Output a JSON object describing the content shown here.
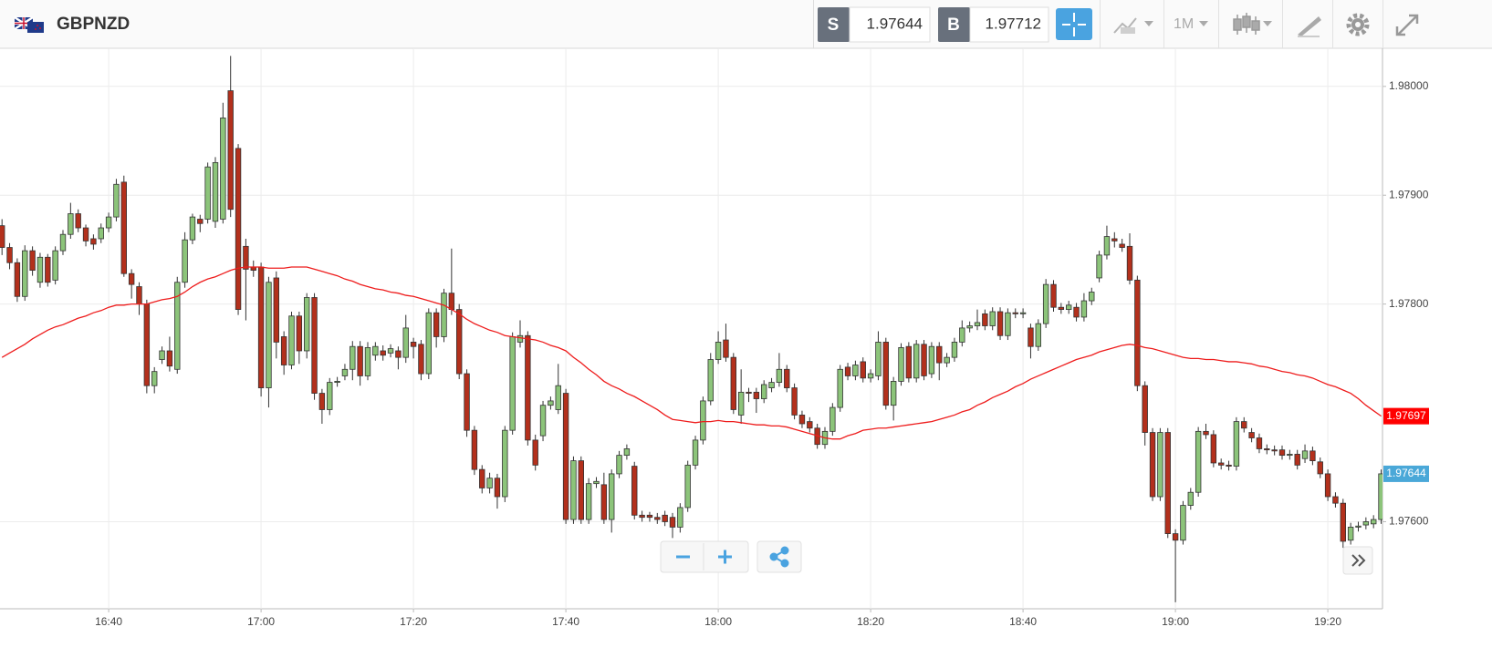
{
  "toolbar": {
    "symbol": "GBPNZD",
    "sell_label": "S",
    "sell_price": "1.97644",
    "buy_label": "B",
    "buy_price": "1.97712",
    "timeframe": "1M"
  },
  "chart_data": {
    "type": "candlestick",
    "up_color": "#8cc47a",
    "down_color": "#b3301c",
    "ylim": [
      1.9752,
      1.98035
    ],
    "yticks": [
      {
        "value": 1.98,
        "label": "1.98000"
      },
      {
        "value": 1.979,
        "label": "1.97900"
      },
      {
        "value": 1.978,
        "label": "1.97800"
      },
      {
        "value": 1.976,
        "label": "1.97600"
      }
    ],
    "grid": true,
    "categories": [
      null,
      null,
      null,
      null,
      null,
      null,
      null,
      null,
      null,
      null,
      null,
      null,
      null,
      null,
      "16:40",
      null,
      null,
      null,
      null,
      null,
      null,
      null,
      null,
      null,
      null,
      null,
      null,
      null,
      null,
      null,
      null,
      null,
      null,
      null,
      "17:00",
      null,
      null,
      null,
      null,
      null,
      null,
      null,
      null,
      null,
      null,
      null,
      null,
      null,
      null,
      null,
      null,
      null,
      null,
      null,
      "17:20",
      null,
      null,
      null,
      null,
      null,
      null,
      null,
      null,
      null,
      null,
      null,
      null,
      null,
      null,
      null,
      null,
      null,
      null,
      null,
      "17:40",
      null,
      null,
      null,
      null,
      null,
      null,
      null,
      null,
      null,
      null,
      null,
      null,
      null,
      null,
      null,
      null,
      null,
      null,
      null,
      "18:00",
      null,
      null,
      null,
      null,
      null,
      null,
      null,
      null,
      null,
      null,
      null,
      null,
      null,
      null,
      null,
      null,
      null,
      null,
      null,
      "18:20",
      null,
      null,
      null,
      null,
      null,
      null,
      null,
      null,
      null,
      null,
      null,
      null,
      null,
      null,
      null,
      null,
      null,
      null,
      null,
      "18:40",
      null,
      null,
      null,
      null,
      null,
      null,
      null,
      null,
      null,
      null,
      null,
      null,
      null,
      null,
      null,
      null,
      null,
      null,
      null,
      "19:00",
      null,
      null,
      null,
      null,
      null,
      null,
      null,
      null,
      null,
      null,
      null,
      null,
      null,
      null,
      null,
      null,
      null,
      null,
      null,
      "19:20",
      null,
      null,
      null,
      null,
      null,
      null,
      null
    ],
    "open": [
      1.97872,
      1.97852,
      1.97838,
      1.97807,
      1.97849,
      1.9782,
      1.97843,
      1.97822,
      1.97849,
      1.97864,
      1.97883,
      1.9787,
      1.9786,
      1.9786,
      1.9787,
      1.9788,
      1.97912,
      1.97828,
      1.97816,
      1.978,
      1.97725,
      1.97749,
      1.97757,
      1.9774,
      1.9782,
      1.97859,
      1.97878,
      1.97878,
      1.97876,
      1.97878,
      1.97996,
      1.97943,
      1.97853,
      1.97834,
      1.97834,
      1.97723,
      1.97824,
      1.9777,
      1.97744,
      1.97789,
      1.97757,
      1.97806,
      1.97718,
      1.97703,
      1.97728,
      1.97734,
      1.9774,
      1.97761,
      1.97734,
      1.97753,
      1.97757,
      1.97755,
      1.97757,
      1.97751,
      1.97765,
      1.97763,
      1.97736,
      1.97792,
      1.9777,
      1.9781,
      1.97795,
      1.97736,
      1.97684,
      1.97648,
      1.97631,
      1.9764,
      1.97623,
      1.97684,
      1.97765,
      1.97771,
      1.97675,
      1.97679,
      1.97707,
      1.97703,
      1.97718,
      1.97602,
      1.97656,
      1.97602,
      1.97635,
      1.97634,
      1.97602,
      1.97644,
      1.97661,
      1.97651,
      1.97606,
      1.97606,
      1.97604,
      1.97606,
      1.97604,
      1.97595,
      1.97613,
      1.97652,
      1.97675,
      1.97711,
      1.97749,
      1.97767,
      1.97751,
      1.97698,
      1.97719,
      1.97719,
      1.97713,
      1.97723,
      1.97728,
      1.9774,
      1.97723,
      1.97698,
      1.97692,
      1.97686,
      1.97671,
      1.97683,
      1.97705,
      1.97742,
      1.97734,
      1.97747,
      1.97732,
      1.97734,
      1.97765,
      1.97707,
      1.97729,
      1.97761,
      1.97732,
      1.97763,
      1.97736,
      1.97761,
      1.97746,
      1.97751,
      1.97765,
      1.97778,
      1.9778,
      1.97791,
      1.9778,
      1.97793,
      1.97771,
      1.97792,
      1.97791,
      1.97778,
      1.97761,
      1.97782,
      1.97818,
      1.97797,
      1.97795,
      1.97797,
      1.97788,
      1.97803,
      1.97824,
      1.97845,
      1.9786,
      1.97855,
      1.97853,
      1.97822,
      1.97725,
      1.97682,
      1.97623,
      1.97682,
      1.97589,
      1.97583,
      1.97615,
      1.97627,
      1.97683,
      1.9768,
      1.97654,
      1.97652,
      1.97651,
      1.97692,
      1.97682,
      1.97677,
      1.97667,
      1.97666,
      1.97666,
      1.97661,
      1.97662,
      1.97658,
      1.97665,
      1.97655,
      1.97644,
      1.97623,
      1.97617,
      1.97583,
      1.97595,
      1.97597,
      1.97598,
      1.97602
    ],
    "high": [
      1.97878,
      1.97856,
      1.97842,
      1.97854,
      1.97853,
      1.97847,
      1.97846,
      1.97853,
      1.97868,
      1.97893,
      1.97887,
      1.97873,
      1.97864,
      1.97874,
      1.97884,
      1.97915,
      1.97918,
      1.97832,
      1.9782,
      1.97804,
      1.97742,
      1.97761,
      1.9777,
      1.97825,
      1.97866,
      1.97883,
      1.97882,
      1.9793,
      1.97935,
      1.97985,
      1.98028,
      1.97947,
      1.9786,
      1.9784,
      1.97838,
      1.97825,
      1.9783,
      1.97775,
      1.97793,
      1.97793,
      1.9781,
      1.9781,
      1.97722,
      1.97732,
      1.97733,
      1.97745,
      1.97766,
      1.97766,
      1.97765,
      1.97765,
      1.97762,
      1.97763,
      1.97761,
      1.9779,
      1.97769,
      1.97767,
      1.97796,
      1.97796,
      1.97814,
      1.97851,
      1.978,
      1.9774,
      1.97688,
      1.97652,
      1.97645,
      1.97644,
      1.97688,
      1.97774,
      1.97785,
      1.97775,
      1.9768,
      1.97711,
      1.97715,
      1.97745,
      1.97722,
      1.9766,
      1.9766,
      1.9764,
      1.97641,
      1.97645,
      1.97648,
      1.97665,
      1.97671,
      1.97655,
      1.9761,
      1.97609,
      1.97608,
      1.9761,
      1.97608,
      1.97617,
      1.97656,
      1.97679,
      1.97715,
      1.97755,
      1.97775,
      1.97782,
      1.97755,
      1.9774,
      1.97723,
      1.97723,
      1.9773,
      1.97732,
      1.97755,
      1.97744,
      1.97727,
      1.97702,
      1.97696,
      1.9769,
      1.97687,
      1.97709,
      1.97744,
      1.97746,
      1.97748,
      1.97751,
      1.9774,
      1.97775,
      1.97769,
      1.97733,
      1.97764,
      1.97765,
      1.97767,
      1.97767,
      1.97765,
      1.97765,
      1.97755,
      1.97769,
      1.97785,
      1.97784,
      1.97795,
      1.97795,
      1.97797,
      1.97797,
      1.97796,
      1.97796,
      1.97796,
      1.97782,
      1.97786,
      1.97823,
      1.97822,
      1.97801,
      1.97803,
      1.97801,
      1.9781,
      1.97815,
      1.97849,
      1.97872,
      1.97866,
      1.9786,
      1.97865,
      1.97826,
      1.97729,
      1.97686,
      1.97686,
      1.97686,
      1.97593,
      1.97619,
      1.97631,
      1.97687,
      1.9769,
      1.97684,
      1.97658,
      1.97656,
      1.97696,
      1.97696,
      1.97686,
      1.97681,
      1.97671,
      1.9767,
      1.9767,
      1.97666,
      1.97666,
      1.97671,
      1.97669,
      1.97659,
      1.97648,
      1.97627,
      1.97621,
      1.97599,
      1.976,
      1.97604,
      1.97606,
      1.97648
    ],
    "low": [
      1.97845,
      1.97832,
      1.97802,
      1.97803,
      1.97826,
      1.97815,
      1.97816,
      1.97818,
      1.97845,
      1.9786,
      1.97866,
      1.97853,
      1.9785,
      1.97856,
      1.97866,
      1.97876,
      1.97825,
      1.97805,
      1.9779,
      1.97718,
      1.97718,
      1.97745,
      1.97738,
      1.97736,
      1.97815,
      1.97855,
      1.97866,
      1.97874,
      1.9787,
      1.97874,
      1.9788,
      1.9779,
      1.97785,
      1.97825,
      1.97715,
      1.97705,
      1.9775,
      1.97735,
      1.9774,
      1.97745,
      1.9775,
      1.97712,
      1.9769,
      1.97698,
      1.97724,
      1.9773,
      1.9773,
      1.97725,
      1.9773,
      1.97748,
      1.97748,
      1.97751,
      1.9774,
      1.97746,
      1.9775,
      1.9773,
      1.97731,
      1.9776,
      1.97765,
      1.9779,
      1.97731,
      1.97678,
      1.97643,
      1.97626,
      1.97626,
      1.97612,
      1.97618,
      1.9768,
      1.9776,
      1.9767,
      1.97647,
      1.97674,
      1.97703,
      1.97699,
      1.97598,
      1.97598,
      1.97598,
      1.97598,
      1.97631,
      1.97598,
      1.9759,
      1.9764,
      1.97657,
      1.97602,
      1.976,
      1.976,
      1.97598,
      1.97596,
      1.97585,
      1.9759,
      1.97609,
      1.97648,
      1.97671,
      1.97707,
      1.97745,
      1.97747,
      1.97699,
      1.9769,
      1.9771,
      1.977,
      1.97709,
      1.97719,
      1.97724,
      1.97719,
      1.97694,
      1.97686,
      1.97682,
      1.97667,
      1.97667,
      1.97679,
      1.97701,
      1.9773,
      1.9773,
      1.97728,
      1.97728,
      1.9773,
      1.97703,
      1.97693,
      1.97725,
      1.97728,
      1.97728,
      1.9773,
      1.97732,
      1.9773,
      1.97742,
      1.97747,
      1.97761,
      1.97774,
      1.97776,
      1.97776,
      1.97776,
      1.97767,
      1.97767,
      1.97787,
      1.97787,
      1.9775,
      1.97757,
      1.97778,
      1.97793,
      1.97791,
      1.97791,
      1.97784,
      1.97784,
      1.97799,
      1.9782,
      1.97841,
      1.97852,
      1.97848,
      1.97818,
      1.9772,
      1.9767,
      1.97619,
      1.97619,
      1.97585,
      1.97526,
      1.97579,
      1.97611,
      1.97623,
      1.97676,
      1.9765,
      1.97648,
      1.97647,
      1.97647,
      1.97682,
      1.97673,
      1.97663,
      1.97662,
      1.97661,
      1.97657,
      1.97657,
      1.97648,
      1.97654,
      1.97652,
      1.9764,
      1.97619,
      1.97613,
      1.97576,
      1.97579,
      1.97591,
      1.97593,
      1.97594,
      1.97598
    ],
    "close": [
      1.97852,
      1.97838,
      1.97807,
      1.97849,
      1.97831,
      1.97843,
      1.9782,
      1.97849,
      1.97864,
      1.97883,
      1.9787,
      1.97858,
      1.97855,
      1.9787,
      1.9788,
      1.9791,
      1.97828,
      1.97818,
      1.978,
      1.97725,
      1.97738,
      1.97757,
      1.97743,
      1.9782,
      1.97859,
      1.9788,
      1.97874,
      1.97926,
      1.9793,
      1.97971,
      1.97887,
      1.97795,
      1.97832,
      1.97831,
      1.97723,
      1.9782,
      1.97765,
      1.97744,
      1.97789,
      1.97757,
      1.97806,
      1.97718,
      1.97703,
      1.97728,
      1.97729,
      1.9774,
      1.97761,
      1.97734,
      1.9776,
      1.97761,
      1.97753,
      1.97759,
      1.97751,
      1.97778,
      1.97761,
      1.97736,
      1.97792,
      1.9777,
      1.9781,
      1.97795,
      1.97736,
      1.97684,
      1.97648,
      1.97631,
      1.9764,
      1.97623,
      1.97684,
      1.9777,
      1.97771,
      1.97675,
      1.97652,
      1.97707,
      1.97711,
      1.97725,
      1.97602,
      1.97656,
      1.97602,
      1.97635,
      1.97637,
      1.97602,
      1.97644,
      1.97661,
      1.97667,
      1.97606,
      1.97604,
      1.97604,
      1.97602,
      1.976,
      1.97595,
      1.97613,
      1.97652,
      1.97675,
      1.97711,
      1.97749,
      1.97765,
      1.97751,
      1.97703,
      1.97719,
      1.97718,
      1.97713,
      1.97726,
      1.97728,
      1.9774,
      1.97723,
      1.97698,
      1.9769,
      1.97686,
      1.97671,
      1.97683,
      1.97705,
      1.9774,
      1.97734,
      1.97744,
      1.97732,
      1.97736,
      1.97765,
      1.97707,
      1.97729,
      1.9776,
      1.97732,
      1.97763,
      1.97734,
      1.97761,
      1.97746,
      1.97751,
      1.97765,
      1.97778,
      1.9778,
      1.97783,
      1.9778,
      1.97793,
      1.97771,
      1.97792,
      1.97791,
      1.97792,
      1.97761,
      1.97782,
      1.97818,
      1.97797,
      1.97795,
      1.97799,
      1.97788,
      1.97803,
      1.97811,
      1.97845,
      1.97862,
      1.97858,
      1.97852,
      1.97822,
      1.97725,
      1.97682,
      1.97623,
      1.97682,
      1.97589,
      1.97583,
      1.97615,
      1.97627,
      1.97683,
      1.9768,
      1.97654,
      1.97652,
      1.97651,
      1.97692,
      1.97686,
      1.97677,
      1.97667,
      1.97666,
      1.97665,
      1.97661,
      1.97662,
      1.97652,
      1.97665,
      1.97656,
      1.97644,
      1.97623,
      1.97617,
      1.97582,
      1.97595,
      1.97596,
      1.976,
      1.97602,
      1.97644
    ],
    "moving_average": {
      "color": "#ee1c1c",
      "values": [
        1.97751,
        1.97755,
        1.97759,
        1.97763,
        1.97768,
        1.97772,
        1.97776,
        1.97779,
        1.97781,
        1.97784,
        1.97787,
        1.97789,
        1.97792,
        1.97794,
        1.97797,
        1.97799,
        1.97799,
        1.978,
        1.978,
        1.978,
        1.97802,
        1.97804,
        1.97805,
        1.97807,
        1.97811,
        1.97816,
        1.9782,
        1.97823,
        1.97825,
        1.97828,
        1.97831,
        1.97833,
        1.97834,
        1.97834,
        1.97834,
        1.97833,
        1.97833,
        1.97833,
        1.97834,
        1.97834,
        1.97834,
        1.97832,
        1.9783,
        1.97828,
        1.97826,
        1.97823,
        1.97821,
        1.97818,
        1.97816,
        1.97814,
        1.97813,
        1.97811,
        1.9781,
        1.97808,
        1.97807,
        1.97805,
        1.97803,
        1.97801,
        1.97799,
        1.97795,
        1.97791,
        1.97786,
        1.97782,
        1.97779,
        1.97776,
        1.97774,
        1.97771,
        1.9777,
        1.97769,
        1.97768,
        1.97767,
        1.97765,
        1.97762,
        1.9776,
        1.97757,
        1.97751,
        1.97746,
        1.9774,
        1.97735,
        1.97729,
        1.97725,
        1.97722,
        1.97718,
        1.97715,
        1.97711,
        1.97707,
        1.97703,
        1.97698,
        1.97694,
        1.97693,
        1.97692,
        1.97691,
        1.97692,
        1.97692,
        1.97693,
        1.97692,
        1.97692,
        1.97691,
        1.9769,
        1.97689,
        1.97689,
        1.97688,
        1.97688,
        1.97687,
        1.97685,
        1.97683,
        1.97681,
        1.97679,
        1.97677,
        1.97676,
        1.97676,
        1.97679,
        1.97681,
        1.97684,
        1.97685,
        1.97686,
        1.97686,
        1.97687,
        1.97688,
        1.97689,
        1.9769,
        1.97691,
        1.97692,
        1.97694,
        1.97696,
        1.97698,
        1.97701,
        1.97703,
        1.97707,
        1.9771,
        1.97714,
        1.97717,
        1.9772,
        1.97724,
        1.97727,
        1.97731,
        1.97734,
        1.97737,
        1.9774,
        1.97743,
        1.97746,
        1.97749,
        1.97751,
        1.97753,
        1.97756,
        1.97758,
        1.9776,
        1.97762,
        1.97763,
        1.97762,
        1.9776,
        1.97759,
        1.97757,
        1.97755,
        1.97753,
        1.97751,
        1.9775,
        1.9775,
        1.97749,
        1.97749,
        1.97748,
        1.97747,
        1.97747,
        1.97746,
        1.97745,
        1.97743,
        1.97742,
        1.9774,
        1.97738,
        1.97737,
        1.97735,
        1.97734,
        1.97732,
        1.97729,
        1.97726,
        1.97724,
        1.97721,
        1.97718,
        1.97713,
        1.97707,
        1.97702,
        1.97697
      ]
    },
    "ma_last": 1.97697,
    "ma_last_color": "#ff0000",
    "last_price": 1.97644,
    "last_price_color": "#4aa8d8"
  }
}
